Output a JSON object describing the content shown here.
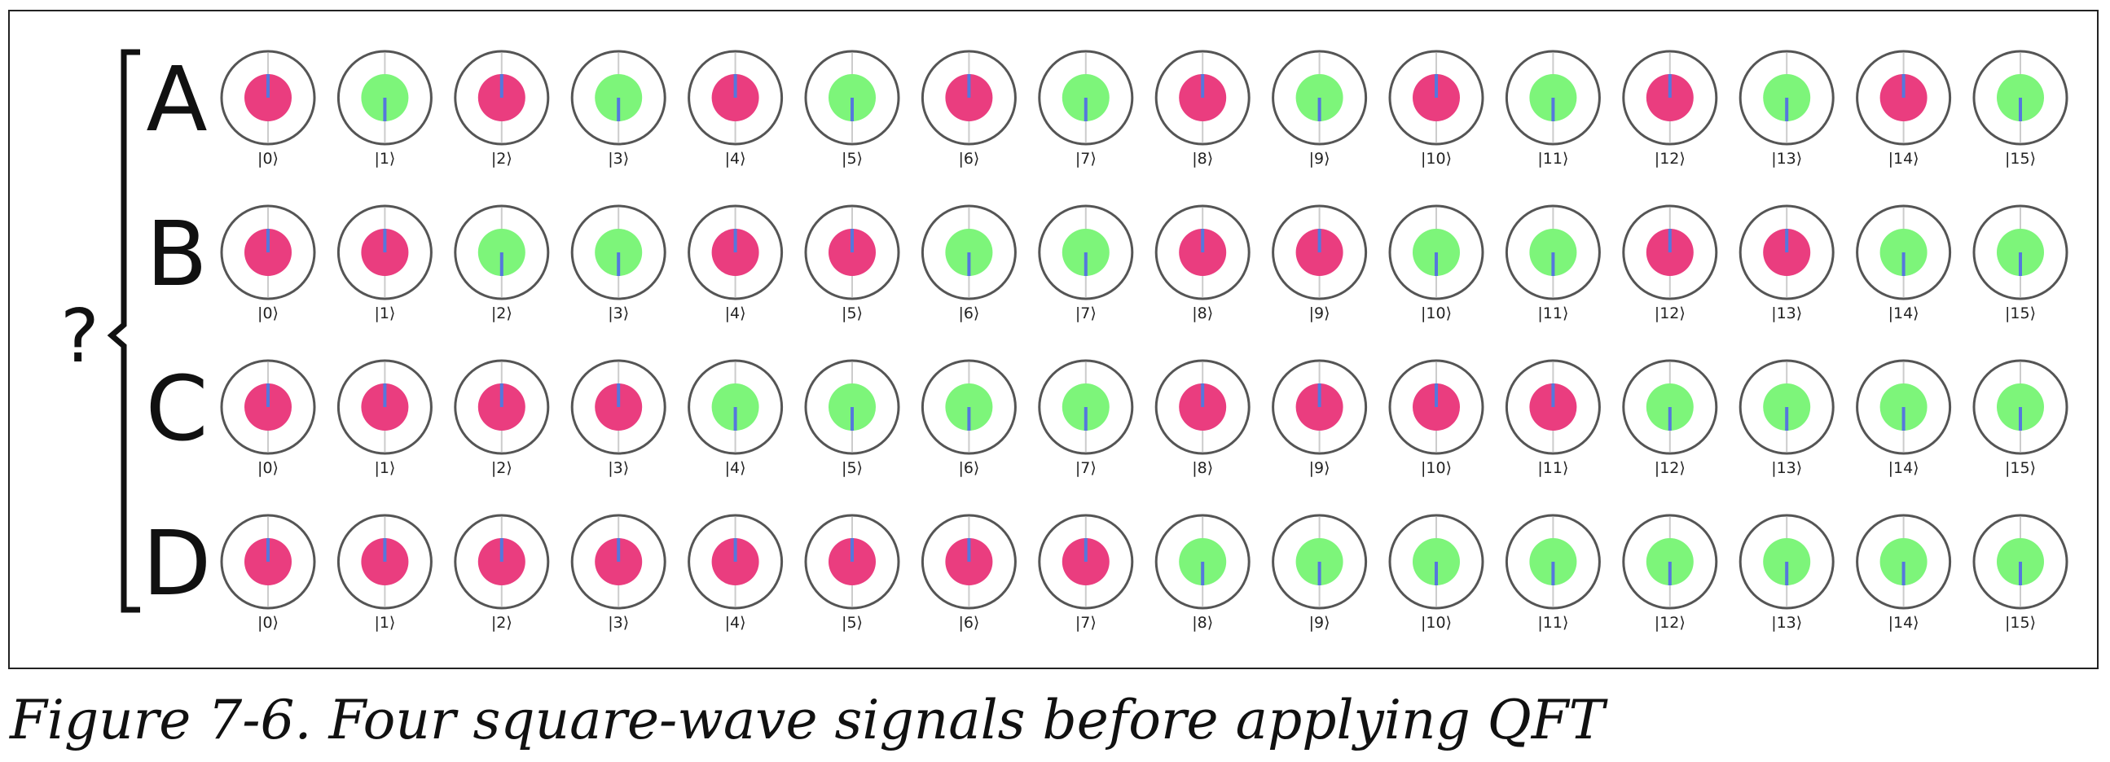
{
  "question_mark": "?",
  "rows": [
    {
      "label": "A",
      "phases": [
        0,
        180,
        0,
        180,
        0,
        180,
        0,
        180,
        0,
        180,
        0,
        180,
        0,
        180,
        0,
        180
      ]
    },
    {
      "label": "B",
      "phases": [
        0,
        0,
        180,
        180,
        0,
        0,
        180,
        180,
        0,
        0,
        180,
        180,
        0,
        0,
        180,
        180
      ]
    },
    {
      "label": "C",
      "phases": [
        0,
        0,
        0,
        0,
        180,
        180,
        180,
        180,
        0,
        0,
        0,
        0,
        180,
        180,
        180,
        180
      ]
    },
    {
      "label": "D",
      "phases": [
        0,
        0,
        0,
        0,
        0,
        0,
        0,
        0,
        180,
        180,
        180,
        180,
        180,
        180,
        180,
        180
      ]
    }
  ],
  "state_labels": [
    "|0⟩",
    "|1⟩",
    "|2⟩",
    "|3⟩",
    "|4⟩",
    "|5⟩",
    "|6⟩",
    "|7⟩",
    "|8⟩",
    "|9⟩",
    "|10⟩",
    "|11⟩",
    "|12⟩",
    "|13⟩",
    "|14⟩",
    "|15⟩"
  ],
  "colors": {
    "phase_0": "#ea3d7f",
    "phase_180": "#7df57a",
    "phase_line": "#5577dd",
    "ring": "#555555",
    "axis": "#cccccc"
  },
  "caption": "Figure 7-6. Four square-wave signals before applying QFT"
}
